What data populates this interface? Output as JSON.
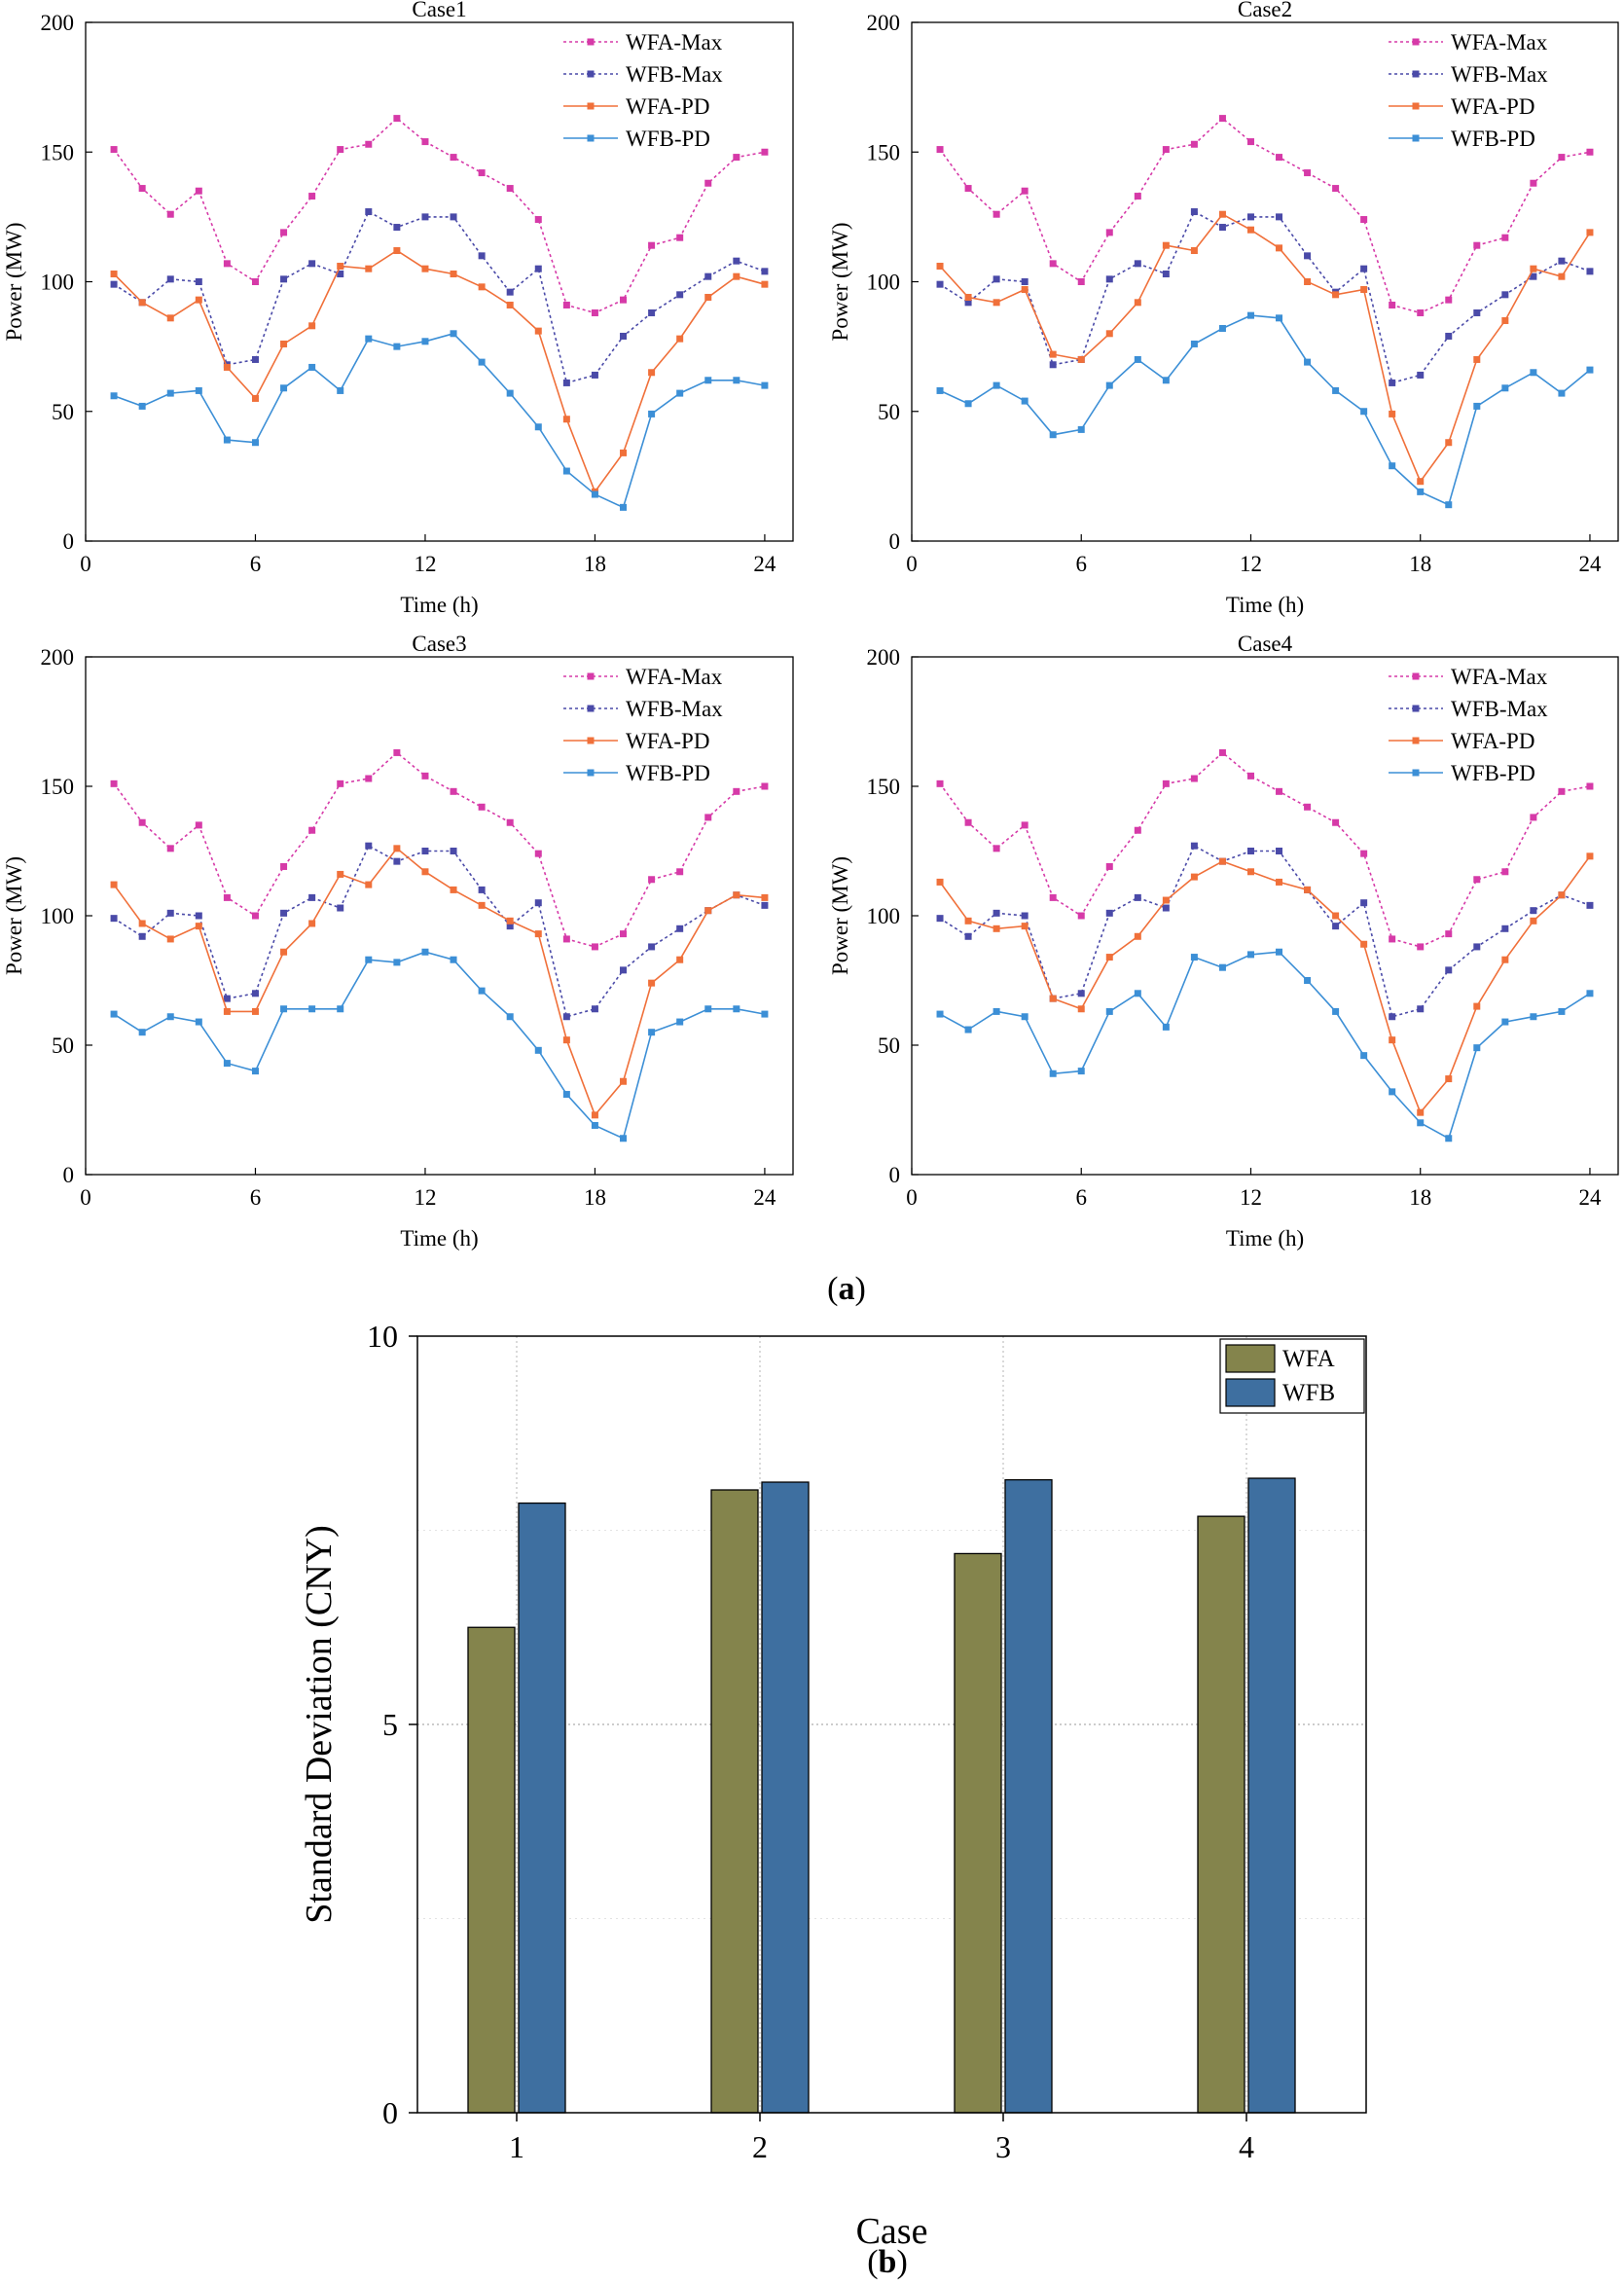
{
  "colors": {
    "wfa_max": "#d63aa8",
    "wfb_max": "#4a4aa8",
    "wfa_pd": "#f0703a",
    "wfb_pd": "#3c8fd6",
    "bar_wfa": "#84844c",
    "bar_wfb": "#3e6fa0"
  },
  "caption_a": "a",
  "caption_b": "b",
  "chart_data": [
    {
      "type": "line",
      "title": "Case1",
      "xlabel": "Time (h)",
      "ylabel": "Power (MW)",
      "xlim": [
        0,
        25
      ],
      "ylim": [
        0,
        200
      ],
      "xticks": [
        0,
        6,
        12,
        18,
        24
      ],
      "yticks": [
        0,
        50,
        100,
        150,
        200
      ],
      "legend_position": "top-right",
      "x": [
        1,
        2,
        3,
        4,
        5,
        6,
        7,
        8,
        9,
        10,
        11,
        12,
        13,
        14,
        15,
        16,
        17,
        18,
        19,
        20,
        21,
        22,
        23,
        24
      ],
      "series": [
        {
          "name": "WFA-Max",
          "key": "wfa_max",
          "style": "dotted",
          "values": [
            151,
            136,
            126,
            135,
            107,
            100,
            119,
            133,
            151,
            153,
            163,
            154,
            148,
            142,
            136,
            124,
            91,
            88,
            93,
            114,
            117,
            138,
            148,
            150
          ]
        },
        {
          "name": "WFB-Max",
          "key": "wfb_max",
          "style": "dotted",
          "values": [
            99,
            92,
            101,
            100,
            68,
            70,
            101,
            107,
            103,
            127,
            121,
            125,
            125,
            110,
            96,
            105,
            61,
            64,
            79,
            88,
            95,
            102,
            108,
            104
          ]
        },
        {
          "name": "WFA-PD",
          "key": "wfa_pd",
          "style": "solid",
          "values": [
            103,
            92,
            86,
            93,
            67,
            55,
            76,
            83,
            106,
            105,
            112,
            105,
            103,
            98,
            91,
            81,
            47,
            19,
            34,
            65,
            78,
            94,
            102,
            99
          ]
        },
        {
          "name": "WFB-PD",
          "key": "wfb_pd",
          "style": "solid",
          "values": [
            56,
            52,
            57,
            58,
            39,
            38,
            59,
            67,
            58,
            78,
            75,
            77,
            80,
            69,
            57,
            44,
            27,
            18,
            13,
            49,
            57,
            62,
            62,
            60
          ]
        }
      ]
    },
    {
      "type": "line",
      "title": "Case2",
      "xlabel": "Time (h)",
      "ylabel": "Power (MW)",
      "xlim": [
        0,
        25
      ],
      "ylim": [
        0,
        200
      ],
      "xticks": [
        0,
        6,
        12,
        18,
        24
      ],
      "yticks": [
        0,
        50,
        100,
        150,
        200
      ],
      "legend_position": "top-right",
      "x": [
        1,
        2,
        3,
        4,
        5,
        6,
        7,
        8,
        9,
        10,
        11,
        12,
        13,
        14,
        15,
        16,
        17,
        18,
        19,
        20,
        21,
        22,
        23,
        24
      ],
      "series": [
        {
          "name": "WFA-Max",
          "key": "wfa_max",
          "style": "dotted",
          "values": [
            151,
            136,
            126,
            135,
            107,
            100,
            119,
            133,
            151,
            153,
            163,
            154,
            148,
            142,
            136,
            124,
            91,
            88,
            93,
            114,
            117,
            138,
            148,
            150
          ]
        },
        {
          "name": "WFB-Max",
          "key": "wfb_max",
          "style": "dotted",
          "values": [
            99,
            92,
            101,
            100,
            68,
            70,
            101,
            107,
            103,
            127,
            121,
            125,
            125,
            110,
            96,
            105,
            61,
            64,
            79,
            88,
            95,
            102,
            108,
            104
          ]
        },
        {
          "name": "WFA-PD",
          "key": "wfa_pd",
          "style": "solid",
          "values": [
            106,
            94,
            92,
            97,
            72,
            70,
            80,
            92,
            114,
            112,
            126,
            120,
            113,
            100,
            95,
            97,
            49,
            23,
            38,
            70,
            85,
            105,
            102,
            119
          ]
        },
        {
          "name": "WFB-PD",
          "key": "wfb_pd",
          "style": "solid",
          "values": [
            58,
            53,
            60,
            54,
            41,
            43,
            60,
            70,
            62,
            76,
            82,
            87,
            86,
            69,
            58,
            50,
            29,
            19,
            14,
            52,
            59,
            65,
            57,
            66
          ]
        }
      ]
    },
    {
      "type": "line",
      "title": "Case3",
      "xlabel": "Time (h)",
      "ylabel": "Power (MW)",
      "xlim": [
        0,
        25
      ],
      "ylim": [
        0,
        200
      ],
      "xticks": [
        0,
        6,
        12,
        18,
        24
      ],
      "yticks": [
        0,
        50,
        100,
        150,
        200
      ],
      "legend_position": "top-right",
      "x": [
        1,
        2,
        3,
        4,
        5,
        6,
        7,
        8,
        9,
        10,
        11,
        12,
        13,
        14,
        15,
        16,
        17,
        18,
        19,
        20,
        21,
        22,
        23,
        24
      ],
      "series": [
        {
          "name": "WFA-Max",
          "key": "wfa_max",
          "style": "dotted",
          "values": [
            151,
            136,
            126,
            135,
            107,
            100,
            119,
            133,
            151,
            153,
            163,
            154,
            148,
            142,
            136,
            124,
            91,
            88,
            93,
            114,
            117,
            138,
            148,
            150
          ]
        },
        {
          "name": "WFB-Max",
          "key": "wfb_max",
          "style": "dotted",
          "values": [
            99,
            92,
            101,
            100,
            68,
            70,
            101,
            107,
            103,
            127,
            121,
            125,
            125,
            110,
            96,
            105,
            61,
            64,
            79,
            88,
            95,
            102,
            108,
            104
          ]
        },
        {
          "name": "WFA-PD",
          "key": "wfa_pd",
          "style": "solid",
          "values": [
            112,
            97,
            91,
            96,
            63,
            63,
            86,
            97,
            116,
            112,
            126,
            117,
            110,
            104,
            98,
            93,
            52,
            23,
            36,
            74,
            83,
            102,
            108,
            107
          ]
        },
        {
          "name": "WFB-PD",
          "key": "wfb_pd",
          "style": "solid",
          "values": [
            62,
            55,
            61,
            59,
            43,
            40,
            64,
            64,
            64,
            83,
            82,
            86,
            83,
            71,
            61,
            48,
            31,
            19,
            14,
            55,
            59,
            64,
            64,
            62
          ]
        }
      ]
    },
    {
      "type": "line",
      "title": "Case4",
      "xlabel": "Time (h)",
      "ylabel": "Power (MW)",
      "xlim": [
        0,
        25
      ],
      "ylim": [
        0,
        200
      ],
      "xticks": [
        0,
        6,
        12,
        18,
        24
      ],
      "yticks": [
        0,
        50,
        100,
        150,
        200
      ],
      "legend_position": "top-right",
      "x": [
        1,
        2,
        3,
        4,
        5,
        6,
        7,
        8,
        9,
        10,
        11,
        12,
        13,
        14,
        15,
        16,
        17,
        18,
        19,
        20,
        21,
        22,
        23,
        24
      ],
      "series": [
        {
          "name": "WFA-Max",
          "key": "wfa_max",
          "style": "dotted",
          "values": [
            151,
            136,
            126,
            135,
            107,
            100,
            119,
            133,
            151,
            153,
            163,
            154,
            148,
            142,
            136,
            124,
            91,
            88,
            93,
            114,
            117,
            138,
            148,
            150
          ]
        },
        {
          "name": "WFB-Max",
          "key": "wfb_max",
          "style": "dotted",
          "values": [
            99,
            92,
            101,
            100,
            68,
            70,
            101,
            107,
            103,
            127,
            121,
            125,
            125,
            110,
            96,
            105,
            61,
            64,
            79,
            88,
            95,
            102,
            108,
            104
          ]
        },
        {
          "name": "WFA-PD",
          "key": "wfa_pd",
          "style": "solid",
          "values": [
            113,
            98,
            95,
            96,
            68,
            64,
            84,
            92,
            106,
            115,
            121,
            117,
            113,
            110,
            100,
            89,
            52,
            24,
            37,
            65,
            83,
            98,
            108,
            123
          ]
        },
        {
          "name": "WFB-PD",
          "key": "wfb_pd",
          "style": "solid",
          "values": [
            62,
            56,
            63,
            61,
            39,
            40,
            63,
            70,
            57,
            84,
            80,
            85,
            86,
            75,
            63,
            46,
            32,
            20,
            14,
            49,
            59,
            61,
            63,
            70
          ]
        }
      ]
    },
    {
      "type": "bar",
      "title": "",
      "xlabel": "Case",
      "ylabel": "Standard Deviation (CNY)",
      "categories": [
        "1",
        "2",
        "3",
        "4"
      ],
      "ylim": [
        0,
        10
      ],
      "yticks": [
        0,
        5,
        10
      ],
      "grid": true,
      "legend_position": "top-right",
      "series": [
        {
          "name": "WFA",
          "key": "bar_wfa",
          "values": [
            6.25,
            8.02,
            7.2,
            7.68
          ]
        },
        {
          "name": "WFB",
          "key": "bar_wfb",
          "values": [
            7.85,
            8.12,
            8.15,
            8.17
          ]
        }
      ]
    }
  ]
}
